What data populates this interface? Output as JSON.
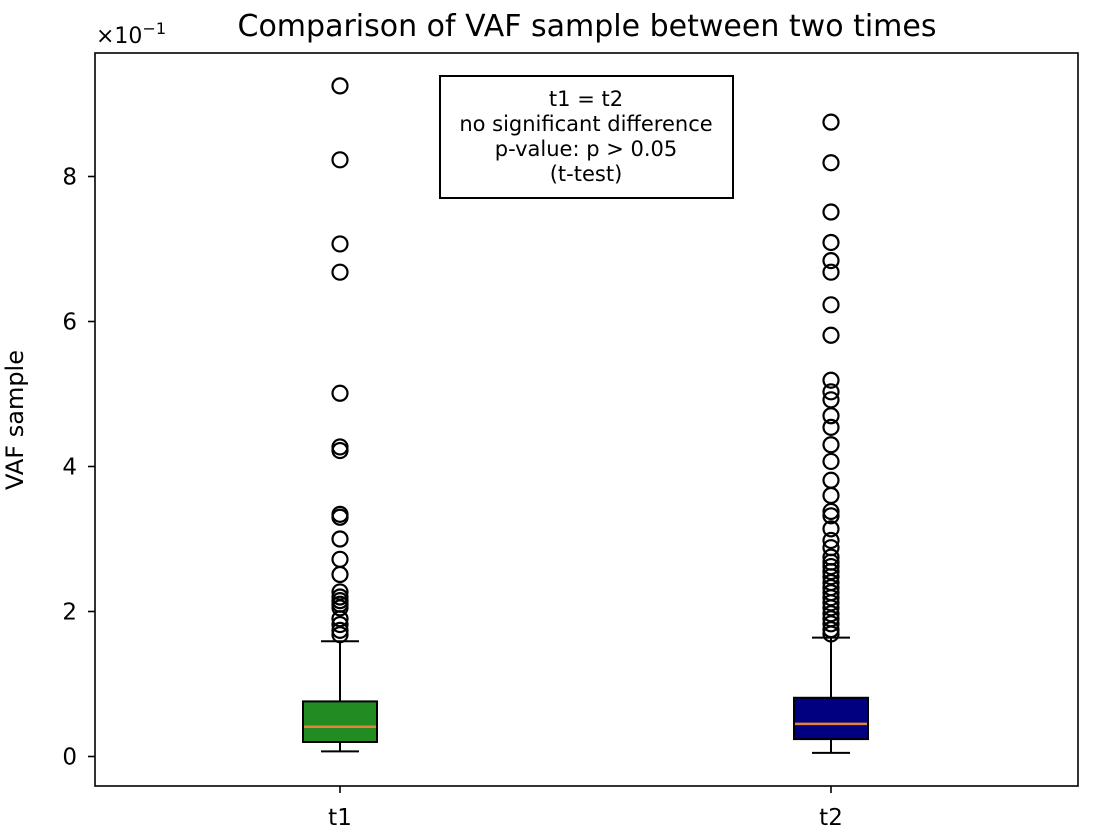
{
  "chart_data": {
    "type": "box",
    "title": "Comparison of VAF sample between two times",
    "ylabel": "VAF sample",
    "xlabel": "",
    "offset_label": "×10",
    "offset_exponent": "−1",
    "ylim": [
      -0.4,
      9.7
    ],
    "yticks": [
      0,
      2,
      4,
      6,
      8
    ],
    "ytick_labels": [
      "0",
      "2",
      "4",
      "6",
      "8"
    ],
    "categories": [
      "t1",
      "t2"
    ],
    "boxes": [
      {
        "label": "t1",
        "color": "#228B22",
        "whisker_low": 0.07,
        "q1": 0.2,
        "median": 0.41,
        "q3": 0.76,
        "whisker_high": 1.59,
        "outliers": [
          9.25,
          8.23,
          7.07,
          6.68,
          5.01,
          4.27,
          4.22,
          3.34,
          3.3,
          3.0,
          2.72,
          2.51,
          2.27,
          2.2,
          2.15,
          2.1,
          2.05,
          1.9,
          1.82,
          1.74,
          1.68
        ]
      },
      {
        "label": "t2",
        "color": "#000080",
        "whisker_low": 0.05,
        "q1": 0.24,
        "median": 0.45,
        "q3": 0.81,
        "whisker_high": 1.64,
        "outliers": [
          8.75,
          8.19,
          7.51,
          7.09,
          6.84,
          6.68,
          6.23,
          5.81,
          5.19,
          5.03,
          4.92,
          4.7,
          4.54,
          4.3,
          4.07,
          3.81,
          3.6,
          3.38,
          3.32,
          3.14,
          2.98,
          2.88,
          2.75,
          2.68,
          2.62,
          2.55,
          2.48,
          2.4,
          2.33,
          2.26,
          2.19,
          2.12,
          2.05,
          1.97,
          1.9,
          1.83,
          1.75,
          1.69
        ]
      }
    ],
    "median_color": "#E8823A",
    "annotation": [
      "t1 = t2",
      "no significant difference",
      "p-value: p > 0.05",
      "(t-test)"
    ],
    "grid": false
  }
}
